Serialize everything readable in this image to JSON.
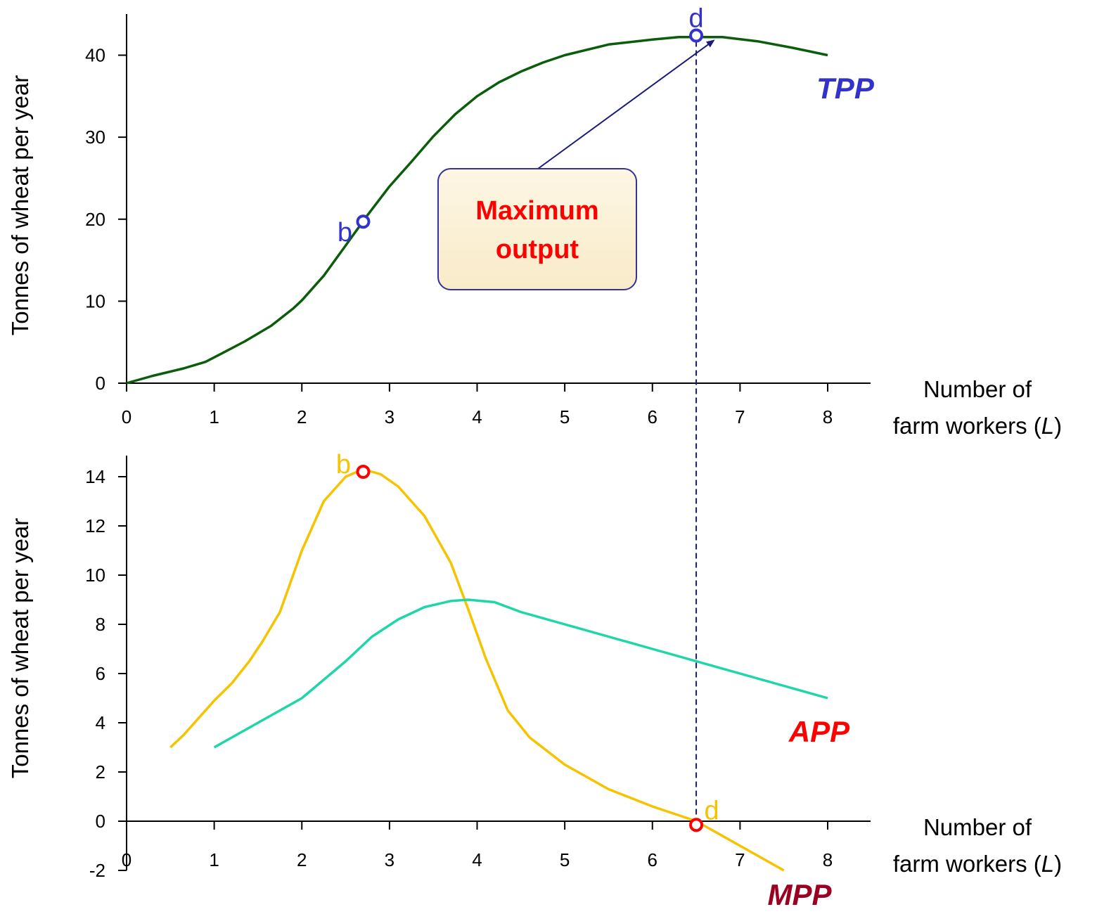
{
  "chart_data": [
    {
      "type": "line",
      "ylabel": "Tonnes of wheat  per year",
      "xlabel_line1": "Number of",
      "xlabel_line2_prefix": "farm workers (",
      "xlabel_line2_italic": "L",
      "xlabel_line2_suffix": ")",
      "xlim": [
        0,
        8
      ],
      "ylim": [
        0,
        40
      ],
      "x_ticks": [
        "0",
        "1",
        "2",
        "3",
        "4",
        "5",
        "6",
        "7",
        "8"
      ],
      "y_ticks": [
        "0",
        "10",
        "20",
        "30",
        "40"
      ],
      "x_tick_values": [
        0,
        1,
        2,
        3,
        4,
        5,
        6,
        7,
        8
      ],
      "y_tick_values": [
        0,
        10,
        20,
        30,
        40
      ],
      "series": [
        {
          "name": "TPP",
          "color": "#0b5c0b",
          "label_color": "#3333cc",
          "x": [
            0,
            0.3,
            0.65,
            0.9,
            1.1,
            1.35,
            1.65,
            1.9,
            2.0,
            2.25,
            2.5,
            2.75,
            3.0,
            3.25,
            3.5,
            3.75,
            4.0,
            4.25,
            4.5,
            4.75,
            5.0,
            5.5,
            6.0,
            6.3,
            6.8,
            7.2,
            7.6,
            8.0
          ],
          "y": [
            0,
            0.9,
            1.8,
            2.6,
            3.7,
            5.1,
            7.0,
            9.1,
            10.1,
            13.1,
            16.8,
            20.5,
            24.0,
            27.0,
            30.1,
            32.8,
            35.0,
            36.7,
            38.0,
            39.1,
            40.0,
            41.3,
            41.9,
            42.2,
            42.2,
            41.7,
            40.9,
            40.0
          ]
        }
      ],
      "points": [
        {
          "label": "b",
          "x": 2.7,
          "y": 19.7,
          "color": "#3333cc"
        },
        {
          "label": "d",
          "x": 6.5,
          "y": 42.4,
          "color": "#3333cc"
        }
      ],
      "callout": {
        "line1": "Maximum",
        "line2": "output",
        "target_x": 6.7,
        "target_y": 41.8
      }
    },
    {
      "type": "line",
      "ylabel": "Tonnes of wheat  per year",
      "xlabel_line1": "Number of",
      "xlabel_line2_prefix": "farm workers (",
      "xlabel_line2_italic": "L",
      "xlabel_line2_suffix": ")",
      "xlim": [
        0,
        8
      ],
      "ylim": [
        -2,
        14
      ],
      "x_ticks": [
        "0",
        "1",
        "2",
        "3",
        "4",
        "5",
        "6",
        "7",
        "8"
      ],
      "y_ticks": [
        "-2",
        "0",
        "2",
        "4",
        "6",
        "8",
        "10",
        "12",
        "14"
      ],
      "x_tick_values": [
        0,
        1,
        2,
        3,
        4,
        5,
        6,
        7,
        8
      ],
      "y_tick_values": [
        -2,
        0,
        2,
        4,
        6,
        8,
        10,
        12,
        14
      ],
      "series": [
        {
          "name": "MPP",
          "color": "#f5c400",
          "label_color": "#990022",
          "x": [
            0.5,
            0.65,
            0.8,
            1.0,
            1.2,
            1.4,
            1.55,
            1.75,
            2.0,
            2.25,
            2.5,
            2.7,
            2.9,
            3.1,
            3.4,
            3.7,
            3.9,
            4.1,
            4.35,
            4.6,
            5.0,
            5.5,
            6.0,
            6.5,
            7.0,
            7.5
          ],
          "y": [
            3.0,
            3.5,
            4.1,
            4.9,
            5.6,
            6.5,
            7.3,
            8.5,
            11.0,
            13.0,
            14.0,
            14.3,
            14.1,
            13.6,
            12.4,
            10.5,
            8.6,
            6.6,
            4.5,
            3.4,
            2.3,
            1.3,
            0.6,
            0,
            -1.0,
            -2.0
          ]
        },
        {
          "name": "APP",
          "color": "#1fd6a8",
          "label_color": "#ff0000",
          "x": [
            1.0,
            1.5,
            2.0,
            2.5,
            2.8,
            3.1,
            3.4,
            3.7,
            3.9,
            4.2,
            4.5,
            5.0,
            5.5,
            6.0,
            6.5,
            7.0,
            7.5,
            8.0
          ],
          "y": [
            3.0,
            4.0,
            5.0,
            6.5,
            7.5,
            8.2,
            8.7,
            8.95,
            9.0,
            8.9,
            8.5,
            8.0,
            7.5,
            7.0,
            6.5,
            6.0,
            5.5,
            5.0
          ]
        }
      ],
      "points": [
        {
          "label": "b",
          "x": 2.7,
          "y": 14.2,
          "color": "#f5c400"
        },
        {
          "label": "d",
          "x": 6.5,
          "y": -0.15,
          "color": "#f5c400"
        }
      ]
    }
  ],
  "colors": {
    "point_ring_top": "#3333cc",
    "point_ring_bottom": "#ff0000",
    "guide_line": "#1a1a7a",
    "callout_border": "#333399",
    "callout_fill": "#fbf1d8"
  }
}
